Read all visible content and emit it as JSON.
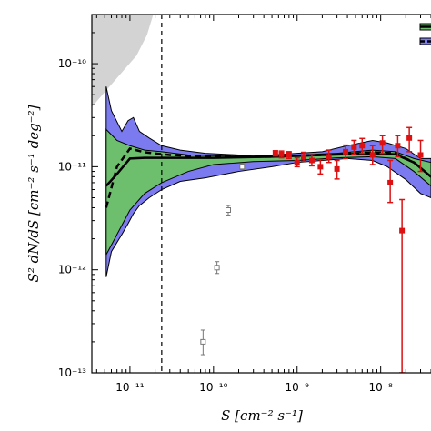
{
  "chart_data": {
    "type": "line",
    "xlabel": "S [cm⁻² s⁻¹]",
    "ylabel": "S² dN/dS [cm⁻² s⁻¹ deg⁻²]",
    "xscale": "log",
    "yscale": "log",
    "xlim": [
      3.5e-12,
      4e-08
    ],
    "ylim": [
      1e-13,
      3e-10
    ],
    "x_ticks": [
      1e-11,
      1e-10,
      1e-09,
      1e-08
    ],
    "x_tick_labels": [
      "10⁻¹¹",
      "10⁻¹⁰",
      "10⁻⁹",
      "10⁻⁸"
    ],
    "y_ticks": [
      1e-13,
      1e-12,
      1e-11,
      1e-10
    ],
    "y_tick_labels": [
      "10⁻¹³",
      "10⁻¹²",
      "10⁻¹¹",
      "10⁻¹⁰"
    ],
    "grid": false,
    "legend_placement": "top-right",
    "colors": {
      "green_band": "#6dbf6d",
      "blue_band": "#7b7bef",
      "red_points": "#dd1111",
      "grey_region": "#d3d3d3",
      "open_points": "#777777"
    },
    "vertical_line_x": 2.4e-11,
    "excluded_region": {
      "x": [
        3.5e-12,
        1.2e-11,
        1.6e-11,
        1.9e-11
      ],
      "y": [
        3.8e-11,
        1.2e-10,
        1.9e-10,
        3e-10
      ]
    },
    "series": [
      {
        "style": "blue_band",
        "x": [
          5.2e-12,
          6e-12,
          8e-12,
          9.5e-12,
          1.1e-11,
          1.3e-11,
          1.7e-11,
          2.4e-11,
          4e-11,
          8e-11,
          2e-10,
          5e-10,
          1e-09,
          2e-09,
          4e-09,
          8e-09,
          1.2e-08,
          2e-08,
          3e-08,
          4e-08
        ],
        "upper": [
          6e-11,
          3.5e-11,
          2.2e-11,
          2.8e-11,
          3e-11,
          2.2e-11,
          1.9e-11,
          1.6e-11,
          1.45e-11,
          1.35e-11,
          1.3e-11,
          1.3e-11,
          1.35e-11,
          1.4e-11,
          1.6e-11,
          1.8e-11,
          1.7e-11,
          1.5e-11,
          1.2e-11,
          1.2e-11
        ],
        "lower": [
          8.5e-13,
          1.5e-12,
          2.2e-12,
          2.8e-12,
          3.5e-12,
          4.2e-12,
          5e-12,
          6e-12,
          7.2e-12,
          7.8e-12,
          9e-12,
          1e-11,
          1.1e-11,
          1.15e-11,
          1.2e-11,
          1.15e-11,
          1e-11,
          7.5e-12,
          5.5e-12,
          5e-12
        ]
      },
      {
        "style": "green_band",
        "x": [
          5.2e-12,
          7e-12,
          1e-11,
          1.5e-11,
          2.4e-11,
          5e-11,
          1e-10,
          3e-10,
          1e-09,
          3e-09,
          8e-09,
          1.5e-08,
          2.5e-08,
          4e-08
        ],
        "upper": [
          2.3e-11,
          1.8e-11,
          1.6e-11,
          1.45e-11,
          1.4e-11,
          1.3e-11,
          1.28e-11,
          1.27e-11,
          1.3e-11,
          1.35e-11,
          1.45e-11,
          1.4e-11,
          1.2e-11,
          1.1e-11
        ],
        "lower": [
          1.4e-12,
          2.2e-12,
          3.8e-12,
          5.5e-12,
          7e-12,
          9e-12,
          1.05e-11,
          1.12e-11,
          1.15e-11,
          1.22e-11,
          1.25e-11,
          1.2e-11,
          9e-12,
          6.5e-12
        ]
      },
      {
        "style": "solid_line",
        "x": [
          5.2e-12,
          7e-12,
          1e-11,
          1.5e-11,
          3e-11,
          1e-10,
          5e-10,
          2e-09,
          8e-09,
          1.5e-08,
          2.5e-08,
          4e-08
        ],
        "y": [
          6.5e-12,
          8.5e-12,
          1.2e-11,
          1.22e-11,
          1.22e-11,
          1.22e-11,
          1.25e-11,
          1.3e-11,
          1.35e-11,
          1.32e-11,
          1.1e-11,
          8e-12
        ]
      },
      {
        "style": "dashed_line",
        "x": [
          5.2e-12,
          7e-12,
          1e-11,
          1.5e-11,
          3e-11,
          1e-10,
          5e-10,
          2e-09,
          8e-09,
          1.5e-08,
          2.5e-08,
          4e-08
        ],
        "y": [
          4e-12,
          1e-11,
          1.5e-11,
          1.38e-11,
          1.3e-11,
          1.25e-11,
          1.25e-11,
          1.3e-11,
          1.38e-11,
          1.35e-11,
          1.1e-11,
          8e-12
        ]
      },
      {
        "style": "red_points",
        "points": [
          {
            "x": 5.5e-10,
            "y": 1.35e-11,
            "lo": 1.27e-11,
            "hi": 1.43e-11
          },
          {
            "x": 6.5e-10,
            "y": 1.32e-11,
            "lo": 1.22e-11,
            "hi": 1.42e-11
          },
          {
            "x": 8e-10,
            "y": 1.3e-11,
            "lo": 1.2e-11,
            "hi": 1.4e-11
          },
          {
            "x": 1e-09,
            "y": 1.1e-11,
            "lo": 1e-11,
            "hi": 1.22e-11
          },
          {
            "x": 1.2e-09,
            "y": 1.25e-11,
            "lo": 1.13e-11,
            "hi": 1.38e-11
          },
          {
            "x": 1.5e-09,
            "y": 1.15e-11,
            "lo": 1.02e-11,
            "hi": 1.3e-11
          },
          {
            "x": 1.9e-09,
            "y": 1e-11,
            "lo": 8.5e-12,
            "hi": 1.17e-11
          },
          {
            "x": 2.4e-09,
            "y": 1.25e-11,
            "lo": 1.1e-11,
            "hi": 1.45e-11
          },
          {
            "x": 3e-09,
            "y": 9.5e-12,
            "lo": 7.6e-12,
            "hi": 1.15e-11
          },
          {
            "x": 3.8e-09,
            "y": 1.4e-11,
            "lo": 1.2e-11,
            "hi": 1.62e-11
          },
          {
            "x": 4.8e-09,
            "y": 1.55e-11,
            "lo": 1.32e-11,
            "hi": 1.8e-11
          },
          {
            "x": 6e-09,
            "y": 1.6e-11,
            "lo": 1.35e-11,
            "hi": 1.88e-11
          },
          {
            "x": 8e-09,
            "y": 1.3e-11,
            "lo": 1.05e-11,
            "hi": 1.6e-11
          },
          {
            "x": 1.05e-08,
            "y": 1.7e-11,
            "lo": 1.35e-11,
            "hi": 2e-11
          },
          {
            "x": 1.3e-08,
            "y": 7e-12,
            "lo": 4.5e-12,
            "hi": 1.15e-11
          },
          {
            "x": 1.6e-08,
            "y": 1.6e-11,
            "lo": 1.25e-11,
            "hi": 2e-11
          },
          {
            "x": 1.8e-08,
            "y": 2.4e-12,
            "lo": 1e-13,
            "hi": 4.8e-12
          },
          {
            "x": 2.2e-08,
            "y": 1.9e-11,
            "lo": 1.4e-11,
            "hi": 2.4e-11
          },
          {
            "x": 3e-08,
            "y": 1.3e-11,
            "lo": 9e-12,
            "hi": 1.8e-11
          }
        ]
      },
      {
        "style": "open_points",
        "points": [
          {
            "x": 7.5e-11,
            "y": 2e-13,
            "lo": 1.5e-13,
            "hi": 2.6e-13
          },
          {
            "x": 1.1e-10,
            "y": 1.05e-12,
            "lo": 9.2e-13,
            "hi": 1.2e-12
          },
          {
            "x": 1.5e-10,
            "y": 3.8e-12,
            "lo": 3.4e-12,
            "hi": 4.2e-12
          },
          {
            "x": 2.2e-10,
            "y": 1e-11,
            "lo": 9.4e-12,
            "hi": 1.06e-11
          }
        ]
      }
    ]
  }
}
